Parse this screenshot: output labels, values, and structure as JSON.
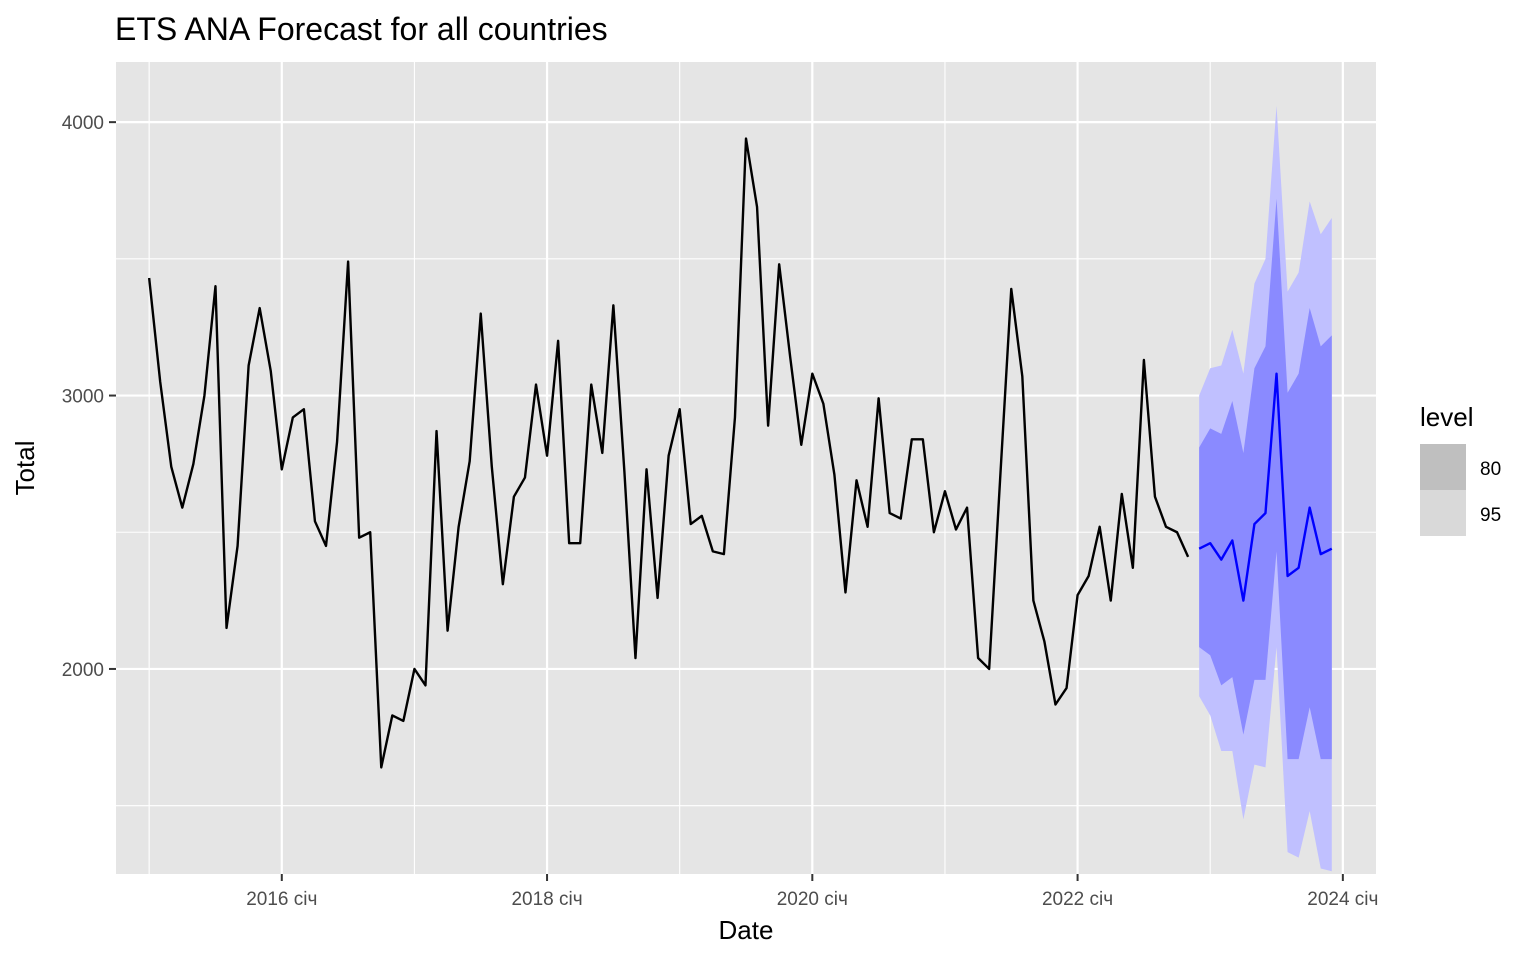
{
  "chart_data": {
    "type": "line",
    "title": "ETS ANA Forecast for all countries",
    "xlabel": "Date",
    "ylabel": "Total",
    "x_start": "2015-01",
    "x_step": "month",
    "xlim": [
      "2014-10",
      "2024-04"
    ],
    "ylim": [
      1250,
      4220
    ],
    "x_ticks": [
      {
        "date": "2016-01",
        "label": "2016 січ"
      },
      {
        "date": "2018-01",
        "label": "2018 січ"
      },
      {
        "date": "2020-01",
        "label": "2020 січ"
      },
      {
        "date": "2022-01",
        "label": "2022 січ"
      },
      {
        "date": "2024-01",
        "label": "2024 січ"
      }
    ],
    "y_ticks": [
      2000,
      3000,
      4000
    ],
    "y_minor_gridlines": [
      1500,
      2500,
      3500
    ],
    "x_minor_gridlines": [
      "2015-01",
      "2017-01",
      "2019-01",
      "2021-01",
      "2023-01"
    ],
    "grid": true,
    "legend": {
      "title": "level",
      "position": "right",
      "entries": [
        {
          "label": "80",
          "color": "#bfbfbf"
        },
        {
          "label": "95",
          "color": "#d9d9d9"
        }
      ]
    },
    "colors": {
      "panel": "#e5e5e5",
      "grid": "#ffffff",
      "history_line": "#000000",
      "forecast_line": "#0000ff",
      "band_80": "#8a8aff",
      "band_95": "#c0c0ff"
    },
    "history": {
      "values": [
        3430,
        3050,
        2740,
        2590,
        2750,
        3000,
        3400,
        2150,
        2450,
        3110,
        3320,
        3090,
        2730,
        2920,
        2950,
        2540,
        2450,
        2830,
        3490,
        2480,
        2500,
        1640,
        1830,
        1810,
        2000,
        1940,
        2870,
        2140,
        2520,
        2760,
        3300,
        2740,
        2310,
        2630,
        2700,
        3040,
        2780,
        3200,
        2460,
        2460,
        3040,
        2790,
        3330,
        2720,
        2040,
        2730,
        2260,
        2780,
        2950,
        2530,
        2560,
        2430,
        2420,
        2920,
        3940,
        3690,
        2890,
        3480,
        3140,
        2820,
        3080,
        2970,
        2710,
        2280,
        2690,
        2520,
        2990,
        2570,
        2550,
        2840,
        2840,
        2500,
        2650,
        2510,
        2590,
        2040,
        2000,
        2700,
        3390,
        3070,
        2250,
        2100,
        1870,
        1930,
        2270,
        2340,
        2520,
        2250,
        2640,
        2370,
        3130,
        2630,
        2520,
        2500,
        2410
      ]
    },
    "forecast": {
      "start": "2022-12",
      "values": [
        2440,
        2460,
        2400,
        2470,
        2250,
        2530,
        2570,
        3080,
        2340,
        2370,
        2590,
        2420,
        2440
      ],
      "lo80": [
        2080,
        2050,
        1940,
        1970,
        1760,
        1960,
        1960,
        2430,
        1670,
        1670,
        1860,
        1670,
        1670
      ],
      "hi80": [
        2810,
        2880,
        2860,
        2980,
        2790,
        3100,
        3180,
        3720,
        3010,
        3080,
        3320,
        3180,
        3220
      ],
      "lo95": [
        1900,
        1830,
        1700,
        1700,
        1450,
        1650,
        1640,
        2080,
        1330,
        1310,
        1480,
        1270,
        1260
      ],
      "hi95": [
        3000,
        3100,
        3110,
        3240,
        3080,
        3410,
        3500,
        4060,
        3380,
        3450,
        3710,
        3590,
        3650
      ]
    }
  }
}
